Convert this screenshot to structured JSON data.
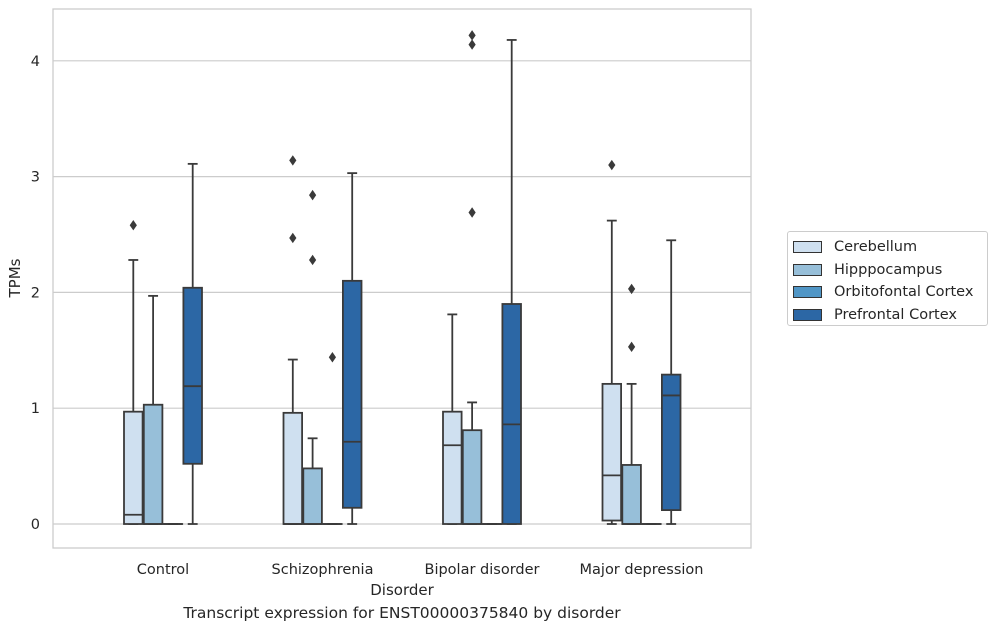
{
  "caption": "Transcript expression for ENST00000375840 by disorder",
  "chart_data": {
    "type": "box",
    "xlabel": "Disorder",
    "ylabel": "TPMs",
    "ylim": [
      -0.2,
      4.45
    ],
    "yticks": [
      "0",
      "1",
      "2",
      "3",
      "4"
    ],
    "grid": true,
    "legend_position": "right",
    "categories": [
      "Control",
      "Schizophrenia",
      "Bipolar disorder",
      "Major depression"
    ],
    "series": [
      {
        "name": "Cerebellum",
        "color": "#cfe0f0",
        "boxes": [
          {
            "min": 0,
            "q1": 0,
            "median": 0.08,
            "q3": 0.97,
            "max": 2.28,
            "outliers": [
              2.58
            ]
          },
          {
            "min": 0,
            "q1": 0,
            "median": 0,
            "q3": 0.96,
            "max": 1.42,
            "outliers": [
              2.47,
              3.14
            ]
          },
          {
            "min": 0,
            "q1": 0,
            "median": 0.68,
            "q3": 0.97,
            "max": 1.81,
            "outliers": []
          },
          {
            "min": 0,
            "q1": 0.03,
            "median": 0.42,
            "q3": 1.21,
            "max": 2.62,
            "outliers": [
              3.1
            ]
          }
        ]
      },
      {
        "name": "Hipppocampus",
        "color": "#97bfd9",
        "boxes": [
          {
            "min": 0,
            "q1": 0,
            "median": 0,
            "q3": 1.03,
            "max": 1.97,
            "outliers": []
          },
          {
            "min": 0,
            "q1": 0,
            "median": 0,
            "q3": 0.48,
            "max": 0.74,
            "outliers": [
              2.28,
              2.84
            ]
          },
          {
            "min": 0,
            "q1": 0,
            "median": 0,
            "q3": 0.81,
            "max": 1.05,
            "outliers": [
              2.69,
              4.14,
              4.22
            ]
          },
          {
            "min": 0,
            "q1": 0,
            "median": 0,
            "q3": 0.51,
            "max": 1.21,
            "outliers": [
              1.53,
              2.03
            ]
          }
        ]
      },
      {
        "name": "Orbitofontal Cortex",
        "color": "#5096c6",
        "boxes": [
          {
            "min": 0,
            "q1": 0,
            "median": 0,
            "q3": 0,
            "max": 0,
            "outliers": []
          },
          {
            "min": 0,
            "q1": 0,
            "median": 0,
            "q3": 0,
            "max": 0,
            "outliers": [
              1.44
            ]
          },
          {
            "min": 0,
            "q1": 0,
            "median": 0,
            "q3": 0,
            "max": 0,
            "outliers": []
          },
          {
            "min": 0,
            "q1": 0,
            "median": 0,
            "q3": 0,
            "max": 0,
            "outliers": []
          }
        ]
      },
      {
        "name": "Prefrontal Cortex",
        "color": "#2c67a5",
        "boxes": [
          {
            "min": 0,
            "q1": 0.52,
            "median": 1.19,
            "q3": 2.04,
            "max": 3.11,
            "outliers": []
          },
          {
            "min": 0,
            "q1": 0.14,
            "median": 0.71,
            "q3": 2.1,
            "max": 3.03,
            "outliers": []
          },
          {
            "min": 0,
            "q1": 0,
            "median": 0.86,
            "q3": 1.9,
            "max": 4.18,
            "outliers": []
          },
          {
            "min": 0,
            "q1": 0.12,
            "median": 1.11,
            "q3": 1.29,
            "max": 2.45,
            "outliers": []
          }
        ]
      }
    ]
  }
}
